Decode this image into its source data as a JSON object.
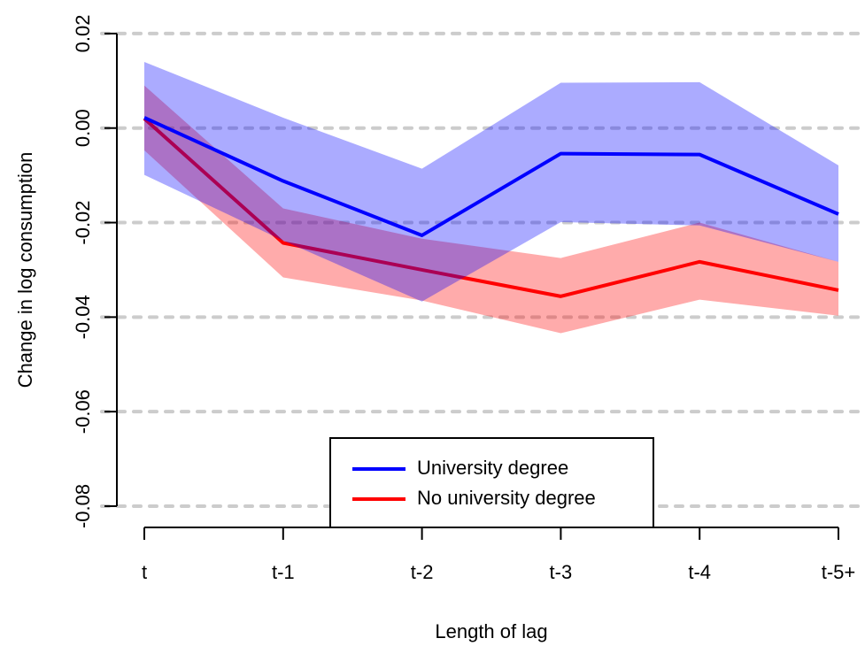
{
  "chart_data": {
    "type": "line",
    "x_label": "Length of lag",
    "y_label": "Change in log consumption",
    "categories": [
      "t",
      "t-1",
      "t-2",
      "t-3",
      "t-4",
      "t-5+"
    ],
    "series": [
      {
        "name": "No university degree",
        "color": "#ff0000",
        "values": [
          0.002,
          -0.0243,
          -0.03,
          -0.0356,
          -0.0283,
          -0.0343
        ],
        "lower": [
          -0.0047,
          -0.0316,
          -0.0365,
          -0.0434,
          -0.0363,
          -0.0397
        ],
        "upper": [
          0.009,
          -0.017,
          -0.0234,
          -0.0275,
          -0.02,
          -0.0283
        ]
      },
      {
        "name": "University degree",
        "color": "#0000ff",
        "values": [
          0.0022,
          -0.0112,
          -0.0227,
          -0.0054,
          -0.0056,
          -0.0182
        ],
        "lower": [
          -0.0099,
          -0.0238,
          -0.0367,
          -0.0199,
          -0.0206,
          -0.0283
        ],
        "upper": [
          0.014,
          0.0022,
          -0.0086,
          0.0096,
          0.0097,
          -0.0079
        ]
      }
    ],
    "ylim": [
      -0.0845,
      0.0271
    ],
    "yticks": [
      -0.08,
      -0.06,
      -0.04,
      -0.02,
      {
        "value": 0,
        "label": "0.00"
      },
      0.02
    ],
    "grid": true,
    "legend": "bottom"
  }
}
